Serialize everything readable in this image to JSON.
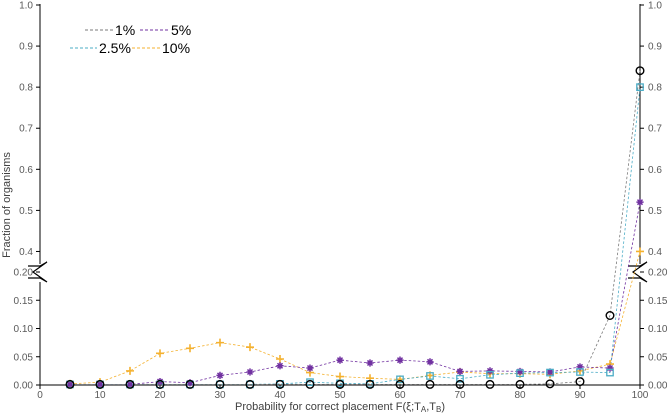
{
  "chart_data": {
    "type": "line",
    "xlabel": "Probability for correct placement F(ξ;T",
    "xlabel_sub_a": "A",
    "xlabel_comma": ",T",
    "xlabel_sub_b": "B",
    "xlabel_close": ")",
    "ylabel": "Fraction of organisms",
    "xlim": [
      0,
      100
    ],
    "x_ticks": [
      "0",
      "10",
      "20",
      "30",
      "40",
      "50",
      "60",
      "70",
      "80",
      "90",
      "100"
    ],
    "y_axis_break": true,
    "y_lower": {
      "range": [
        0,
        0.2
      ],
      "ticks": [
        "0.00",
        "0.05",
        "0.10",
        "0.15",
        "0.20"
      ]
    },
    "y_upper": {
      "range": [
        0.35,
        1.0
      ],
      "ticks": [
        "0.4",
        "0.5",
        "0.6",
        "0.7",
        "0.8",
        "0.9",
        "1.0"
      ]
    },
    "grid": false,
    "legend_position": "top-left",
    "series": [
      {
        "name": "1%",
        "color": "#000000",
        "marker": "circle",
        "line_color": "#7a7a7a",
        "points": [
          [
            5,
            0.001
          ],
          [
            10,
            0.001
          ],
          [
            15,
            0.001
          ],
          [
            20,
            0.001
          ],
          [
            25,
            0.001
          ],
          [
            30,
            0.001
          ],
          [
            35,
            0.001
          ],
          [
            40,
            0.001
          ],
          [
            45,
            0.001
          ],
          [
            50,
            0.001
          ],
          [
            55,
            0.001
          ],
          [
            60,
            0.001
          ],
          [
            65,
            0.001
          ],
          [
            70,
            0.001
          ],
          [
            75,
            0.001
          ],
          [
            80,
            0.001
          ],
          [
            85,
            0.002
          ],
          [
            90,
            0.006
          ],
          [
            95,
            0.123
          ],
          [
            100,
            0.84
          ]
        ]
      },
      {
        "name": "2.5%",
        "color": "#4bacc6",
        "marker": "square",
        "line_color": "#4bacc6",
        "points": [
          [
            5,
            0.001
          ],
          [
            10,
            0.001
          ],
          [
            15,
            0.001
          ],
          [
            20,
            0.001
          ],
          [
            25,
            0.001
          ],
          [
            30,
            0.001
          ],
          [
            35,
            0.001
          ],
          [
            40,
            0.002
          ],
          [
            45,
            0.005
          ],
          [
            50,
            0.003
          ],
          [
            55,
            0.002
          ],
          [
            60,
            0.01
          ],
          [
            65,
            0.016
          ],
          [
            70,
            0.011
          ],
          [
            75,
            0.018
          ],
          [
            80,
            0.021
          ],
          [
            85,
            0.022
          ],
          [
            90,
            0.023
          ],
          [
            95,
            0.022
          ],
          [
            100,
            0.8
          ]
        ]
      },
      {
        "name": "5%",
        "color": "#7030a0",
        "marker": "asterisk",
        "line_color": "#7030a0",
        "points": [
          [
            5,
            0.001
          ],
          [
            10,
            0.001
          ],
          [
            15,
            0.001
          ],
          [
            20,
            0.006
          ],
          [
            25,
            0.004
          ],
          [
            30,
            0.017
          ],
          [
            35,
            0.023
          ],
          [
            40,
            0.034
          ],
          [
            45,
            0.03
          ],
          [
            50,
            0.044
          ],
          [
            55,
            0.039
          ],
          [
            60,
            0.044
          ],
          [
            65,
            0.041
          ],
          [
            70,
            0.024
          ],
          [
            75,
            0.025
          ],
          [
            80,
            0.024
          ],
          [
            85,
            0.023
          ],
          [
            90,
            0.032
          ],
          [
            95,
            0.03
          ],
          [
            100,
            0.52
          ]
        ]
      },
      {
        "name": "10%",
        "color": "#f4b12f",
        "marker": "plus",
        "line_color": "#f4b12f",
        "points": [
          [
            5,
            0.002
          ],
          [
            10,
            0.005
          ],
          [
            15,
            0.025
          ],
          [
            20,
            0.056
          ],
          [
            25,
            0.065
          ],
          [
            30,
            0.075
          ],
          [
            35,
            0.067
          ],
          [
            40,
            0.046
          ],
          [
            45,
            0.022
          ],
          [
            50,
            0.015
          ],
          [
            55,
            0.012
          ],
          [
            60,
            0.01
          ],
          [
            65,
            0.017
          ],
          [
            70,
            0.023
          ],
          [
            75,
            0.02
          ],
          [
            80,
            0.02
          ],
          [
            85,
            0.019
          ],
          [
            90,
            0.025
          ],
          [
            95,
            0.037
          ],
          [
            100,
            0.4
          ]
        ]
      }
    ]
  }
}
